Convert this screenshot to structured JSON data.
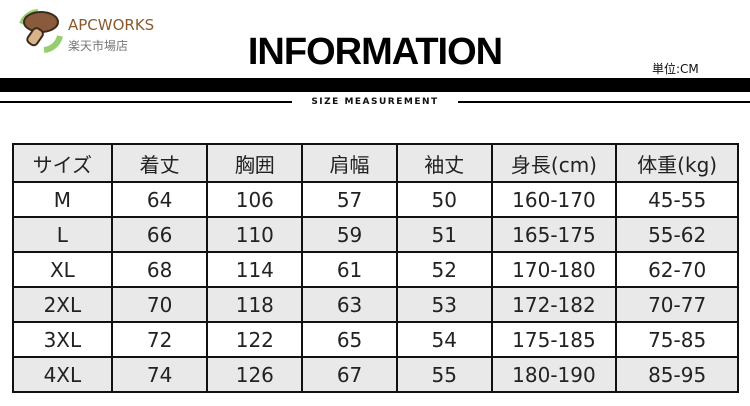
{
  "header": {
    "title": "INFORMATION",
    "unit": "単位:CM",
    "subtitle": "SIZE MEASUREMENT"
  },
  "table": {
    "headers": [
      "サイズ",
      "着丈",
      "胸囲",
      "肩幅",
      "袖丈",
      "身長(cm)",
      "体重(kg)"
    ],
    "rows": [
      [
        "M",
        "64",
        "106",
        "57",
        "50",
        "160-170",
        "45-55"
      ],
      [
        "L",
        "66",
        "110",
        "59",
        "51",
        "165-175",
        "55-62"
      ],
      [
        "XL",
        "68",
        "114",
        "61",
        "52",
        "170-180",
        "62-70"
      ],
      [
        "2XL",
        "70",
        "118",
        "63",
        "53",
        "172-182",
        "70-77"
      ],
      [
        "3XL",
        "72",
        "122",
        "65",
        "54",
        "175-185",
        "75-85"
      ],
      [
        "4XL",
        "74",
        "126",
        "67",
        "55",
        "180-190",
        "85-95"
      ]
    ]
  },
  "watermark": {
    "brand": "APCWORKS",
    "store": "楽天市場店"
  }
}
